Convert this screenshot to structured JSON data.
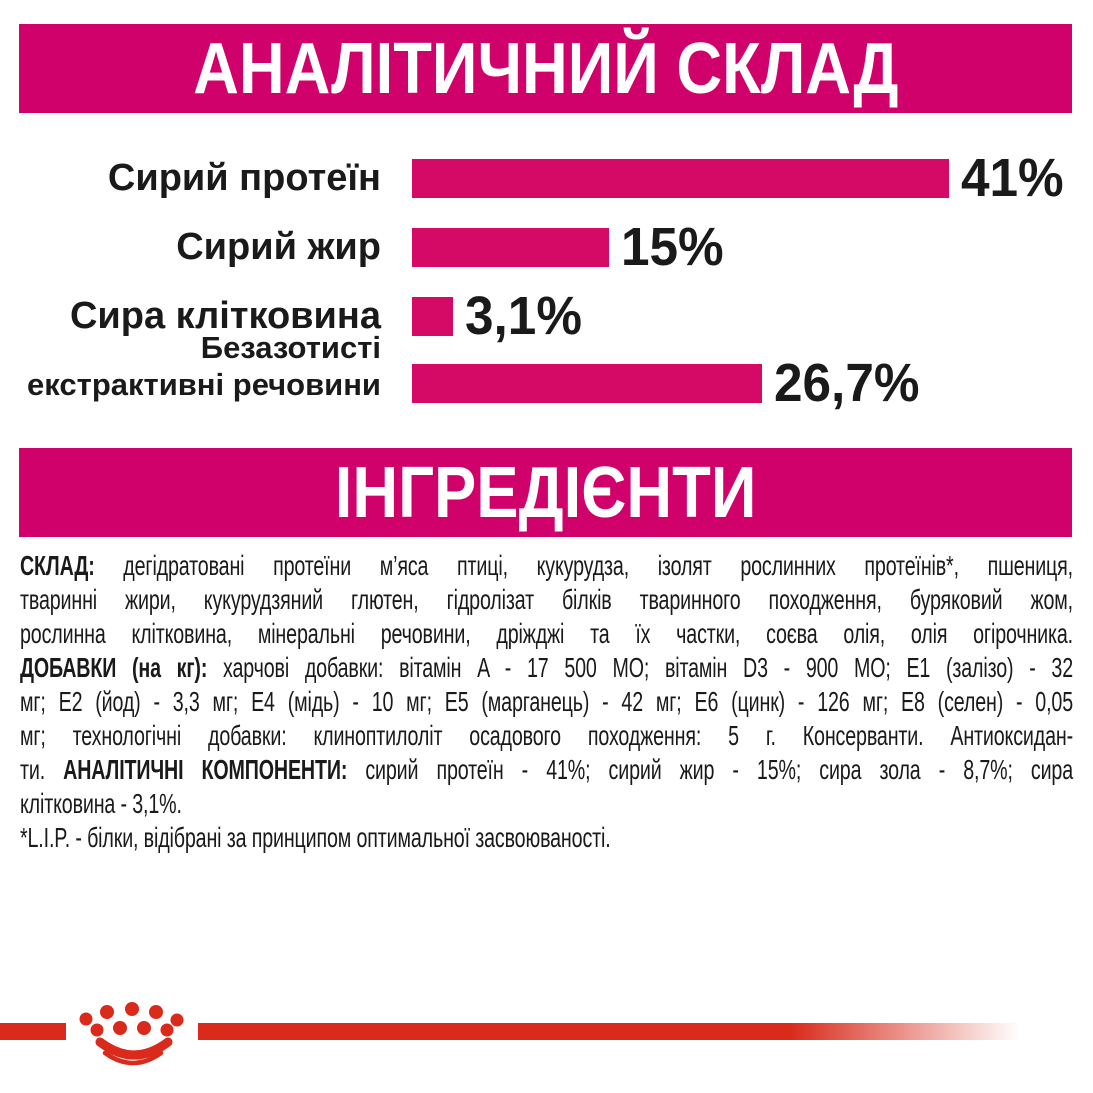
{
  "analytical_header": {
    "title": "АНАЛІТИЧНИЙ СКЛАД",
    "bg_color": "#d1016b",
    "text_color": "#ffffff"
  },
  "chart_data": {
    "type": "bar",
    "orientation": "horizontal",
    "title": "АНАЛІТИЧНИЙ СКЛАД",
    "unit": "%",
    "categories": [
      "Сирий протеїн",
      "Сирий жир",
      "Сира клітковина",
      "Безазотисті екстрактивні речовини"
    ],
    "category_lines": [
      [
        "Сирий протеїн"
      ],
      [
        "Сирий жир"
      ],
      [
        "Сира клітковина"
      ],
      [
        "Безазотисті",
        "екстрактивні речовини"
      ]
    ],
    "values": [
      41,
      15,
      3.1,
      26.7
    ],
    "value_labels": [
      "41%",
      "15%",
      "3,1%",
      "26,7%"
    ],
    "xlim": [
      0,
      41
    ],
    "bar_color": "#d50a66",
    "label_color": "#1a1a1a",
    "grid": false,
    "legend": false
  },
  "ingredients_header": {
    "title": "ІНГРЕДІЄНТИ",
    "bg_color": "#d1016b",
    "text_color": "#ffffff"
  },
  "ingredients_text": {
    "lines": [
      {
        "align": "justify",
        "runs": [
          {
            "b": true,
            "t": "СКЛАД:"
          },
          {
            "b": false,
            "t": " дегідратовані протеїни м’яса птиці, кукурудза, ізолят рослинних протеїнів*, пшениця,"
          }
        ]
      },
      {
        "align": "justify",
        "runs": [
          {
            "b": false,
            "t": "тваринні жири, кукурудзяний глютен, гідролізат білків тваринного походження, буряковий жом,"
          }
        ]
      },
      {
        "align": "justify",
        "runs": [
          {
            "b": false,
            "t": "рослинна клітковина, мінеральні речовини, дріжджі та їх частки, соєва олія, олія огірочника."
          }
        ]
      },
      {
        "align": "justify",
        "runs": [
          {
            "b": true,
            "t": "ДОБАВКИ (на кг):"
          },
          {
            "b": false,
            "t": " харчові добавки: вітамін A - 17 500 МО; вітамін D3 - 900 МО; E1 (залізо) - 32"
          }
        ]
      },
      {
        "align": "justify",
        "runs": [
          {
            "b": false,
            "t": "мг; E2 (йод) - 3,3 мг; E4 (мідь) - 10 мг; E5 (марганець) - 42 мг; E6 (цинк) - 126 мг; E8 (селен) - 0,05"
          }
        ]
      },
      {
        "align": "justify",
        "runs": [
          {
            "b": false,
            "t": "мг; технологічні добавки: клиноптилоліт осадового походження: 5 г. Консерванти. Антиоксидан-"
          }
        ]
      },
      {
        "align": "justify",
        "runs": [
          {
            "b": false,
            "t": "ти. "
          },
          {
            "b": true,
            "t": "АНАЛІТИЧНІ КОМПОНЕНТИ:"
          },
          {
            "b": false,
            "t": " сирий протеїн - 41%; сирий жир - 15%; сира зола - 8,7%; сира"
          }
        ]
      },
      {
        "align": "left",
        "runs": [
          {
            "b": false,
            "t": "клітковина - 3,1%."
          }
        ]
      },
      {
        "align": "left",
        "runs": [
          {
            "b": false,
            "t": "*L.I.P. - білки, відібрані за принципом оптимальної засвоюваності."
          }
        ]
      }
    ]
  },
  "footer": {
    "logo": "royal-canin-crown-icon",
    "line_color": "#d92a1c"
  }
}
